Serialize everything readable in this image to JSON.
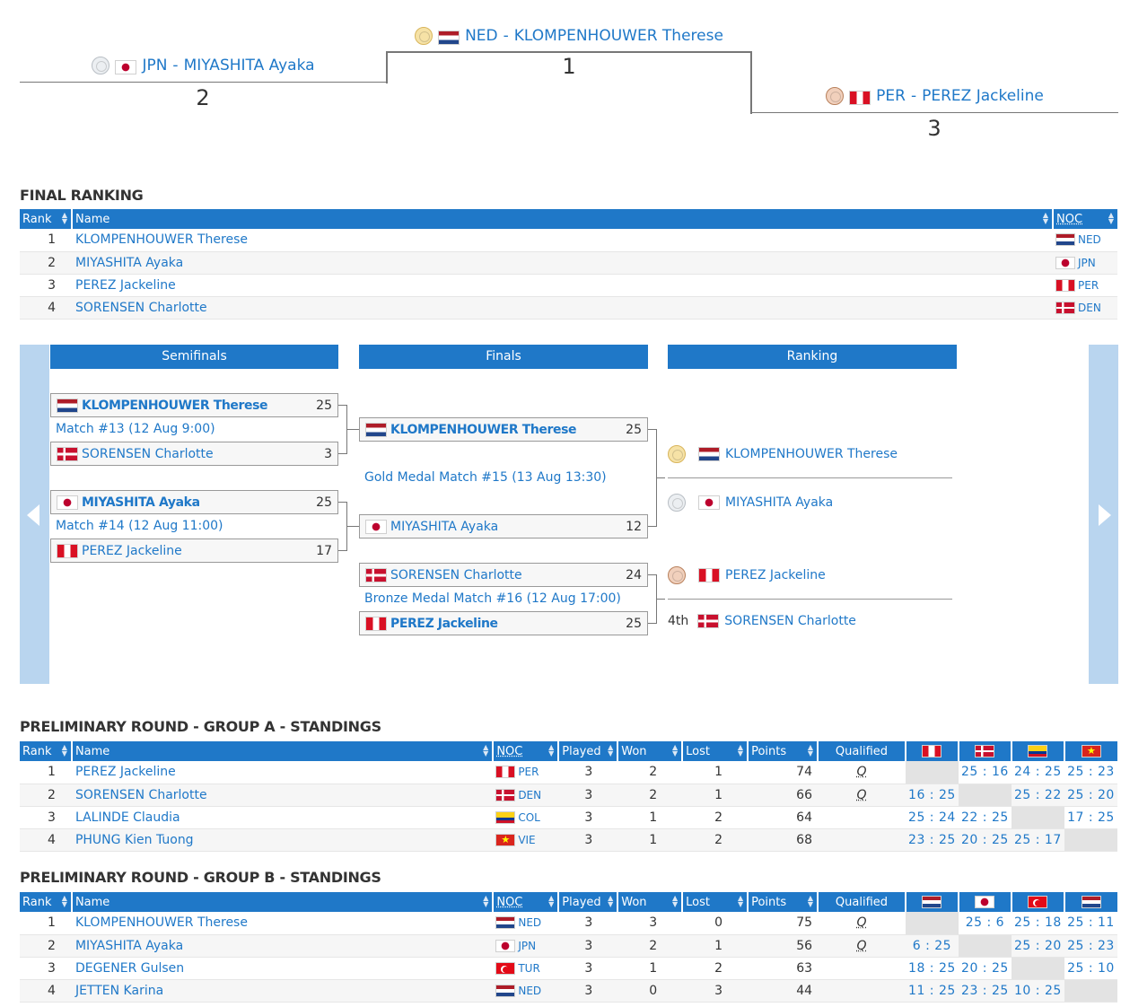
{
  "podium": {
    "first": {
      "place": "1",
      "noc": "NED",
      "name": "KLOMPENHOUWER Therese",
      "flag": "ned",
      "medal": "gold"
    },
    "second": {
      "place": "2",
      "noc": "JPN",
      "name": "MIYASHITA Ayaka",
      "flag": "jpn",
      "medal": "silver"
    },
    "third": {
      "place": "3",
      "noc": "PER",
      "name": "PEREZ Jackeline",
      "flag": "per",
      "medal": "bronze"
    },
    "separator": "-"
  },
  "final_ranking": {
    "title": "FINAL RANKING",
    "headers": {
      "rank": "Rank",
      "name": "Name",
      "noc": "NOC"
    },
    "rows": [
      {
        "rank": "1",
        "name": "KLOMPENHOUWER Therese",
        "noc": "NED",
        "flag": "ned"
      },
      {
        "rank": "2",
        "name": "MIYASHITA Ayaka",
        "noc": "JPN",
        "flag": "jpn"
      },
      {
        "rank": "3",
        "name": "PEREZ Jackeline",
        "noc": "PER",
        "flag": "per"
      },
      {
        "rank": "4",
        "name": "SORENSEN Charlotte",
        "noc": "DEN",
        "flag": "den"
      }
    ]
  },
  "bracket": {
    "columns": {
      "semifinals": "Semifinals",
      "finals": "Finals",
      "ranking": "Ranking"
    },
    "semi1": {
      "top": {
        "name": "KLOMPENHOUWER Therese",
        "flag": "ned",
        "score": "25"
      },
      "label": "Match #13 (12 Aug 9:00)",
      "bottom": {
        "name": "SORENSEN Charlotte",
        "flag": "den",
        "score": "3"
      }
    },
    "semi2": {
      "top": {
        "name": "MIYASHITA Ayaka",
        "flag": "jpn",
        "score": "25"
      },
      "label": "Match #14 (12 Aug 11:00)",
      "bottom": {
        "name": "PEREZ Jackeline",
        "flag": "per",
        "score": "17"
      }
    },
    "gold": {
      "top": {
        "name": "KLOMPENHOUWER Therese",
        "flag": "ned",
        "score": "25"
      },
      "label": "Gold Medal Match #15 (13 Aug 13:30)",
      "bottom": {
        "name": "MIYASHITA Ayaka",
        "flag": "jpn",
        "score": "12"
      }
    },
    "bronze": {
      "top": {
        "name": "SORENSEN Charlotte",
        "flag": "den",
        "score": "24"
      },
      "label": "Bronze Medal Match #16 (12 Aug 17:00)",
      "bottom": {
        "name": "PEREZ Jackeline",
        "flag": "per",
        "score": "25"
      }
    },
    "ranking": [
      {
        "medal": "gold",
        "name": "KLOMPENHOUWER Therese",
        "flag": "ned"
      },
      {
        "medal": "silver",
        "name": "MIYASHITA Ayaka",
        "flag": "jpn"
      },
      {
        "medal": "bronze",
        "name": "PEREZ Jackeline",
        "flag": "per"
      },
      {
        "label": "4th",
        "name": "SORENSEN Charlotte",
        "flag": "den"
      }
    ]
  },
  "group_a": {
    "title": "PRELIMINARY ROUND - GROUP A - STANDINGS",
    "headers": {
      "rank": "Rank",
      "name": "Name",
      "noc": "NOC",
      "played": "Played",
      "won": "Won",
      "lost": "Lost",
      "points": "Points",
      "qualified": "Qualified"
    },
    "opponent_flags": [
      "per",
      "den",
      "col",
      "vie"
    ],
    "rows": [
      {
        "rank": "1",
        "name": "PEREZ Jackeline",
        "noc": "PER",
        "flag": "per",
        "played": "3",
        "won": "2",
        "lost": "1",
        "points": "74",
        "qualified": "Q",
        "scores": [
          "",
          "25 : 16",
          "24 : 25",
          "25 : 23"
        ]
      },
      {
        "rank": "2",
        "name": "SORENSEN Charlotte",
        "noc": "DEN",
        "flag": "den",
        "played": "3",
        "won": "2",
        "lost": "1",
        "points": "66",
        "qualified": "Q",
        "scores": [
          "16 : 25",
          "",
          "25 : 22",
          "25 : 20"
        ]
      },
      {
        "rank": "3",
        "name": "LALINDE Claudia",
        "noc": "COL",
        "flag": "col",
        "played": "3",
        "won": "1",
        "lost": "2",
        "points": "64",
        "qualified": "",
        "scores": [
          "25 : 24",
          "22 : 25",
          "",
          "17 : 25"
        ]
      },
      {
        "rank": "4",
        "name": "PHUNG Kien Tuong",
        "noc": "VIE",
        "flag": "vie",
        "played": "3",
        "won": "1",
        "lost": "2",
        "points": "68",
        "qualified": "",
        "scores": [
          "23 : 25",
          "20 : 25",
          "25 : 17",
          ""
        ]
      }
    ]
  },
  "group_b": {
    "title": "PRELIMINARY ROUND - GROUP B - STANDINGS",
    "headers": {
      "rank": "Rank",
      "name": "Name",
      "noc": "NOC",
      "played": "Played",
      "won": "Won",
      "lost": "Lost",
      "points": "Points",
      "qualified": "Qualified"
    },
    "opponent_flags": [
      "ned",
      "jpn",
      "tur",
      "ned"
    ],
    "rows": [
      {
        "rank": "1",
        "name": "KLOMPENHOUWER Therese",
        "noc": "NED",
        "flag": "ned",
        "played": "3",
        "won": "3",
        "lost": "0",
        "points": "75",
        "qualified": "Q",
        "scores": [
          "",
          "25 : 6",
          "25 : 18",
          "25 : 11"
        ]
      },
      {
        "rank": "2",
        "name": "MIYASHITA Ayaka",
        "noc": "JPN",
        "flag": "jpn",
        "played": "3",
        "won": "2",
        "lost": "1",
        "points": "56",
        "qualified": "Q",
        "scores": [
          "6 : 25",
          "",
          "25 : 20",
          "25 : 23"
        ]
      },
      {
        "rank": "3",
        "name": "DEGENER Gulsen",
        "noc": "TUR",
        "flag": "tur",
        "played": "3",
        "won": "1",
        "lost": "2",
        "points": "63",
        "qualified": "",
        "scores": [
          "18 : 25",
          "20 : 25",
          "",
          "25 : 10"
        ]
      },
      {
        "rank": "4",
        "name": "JETTEN Karina",
        "noc": "NED",
        "flag": "ned",
        "played": "3",
        "won": "0",
        "lost": "3",
        "points": "44",
        "qualified": "",
        "scores": [
          "11 : 25",
          "23 : 25",
          "10 : 25",
          ""
        ]
      }
    ]
  }
}
